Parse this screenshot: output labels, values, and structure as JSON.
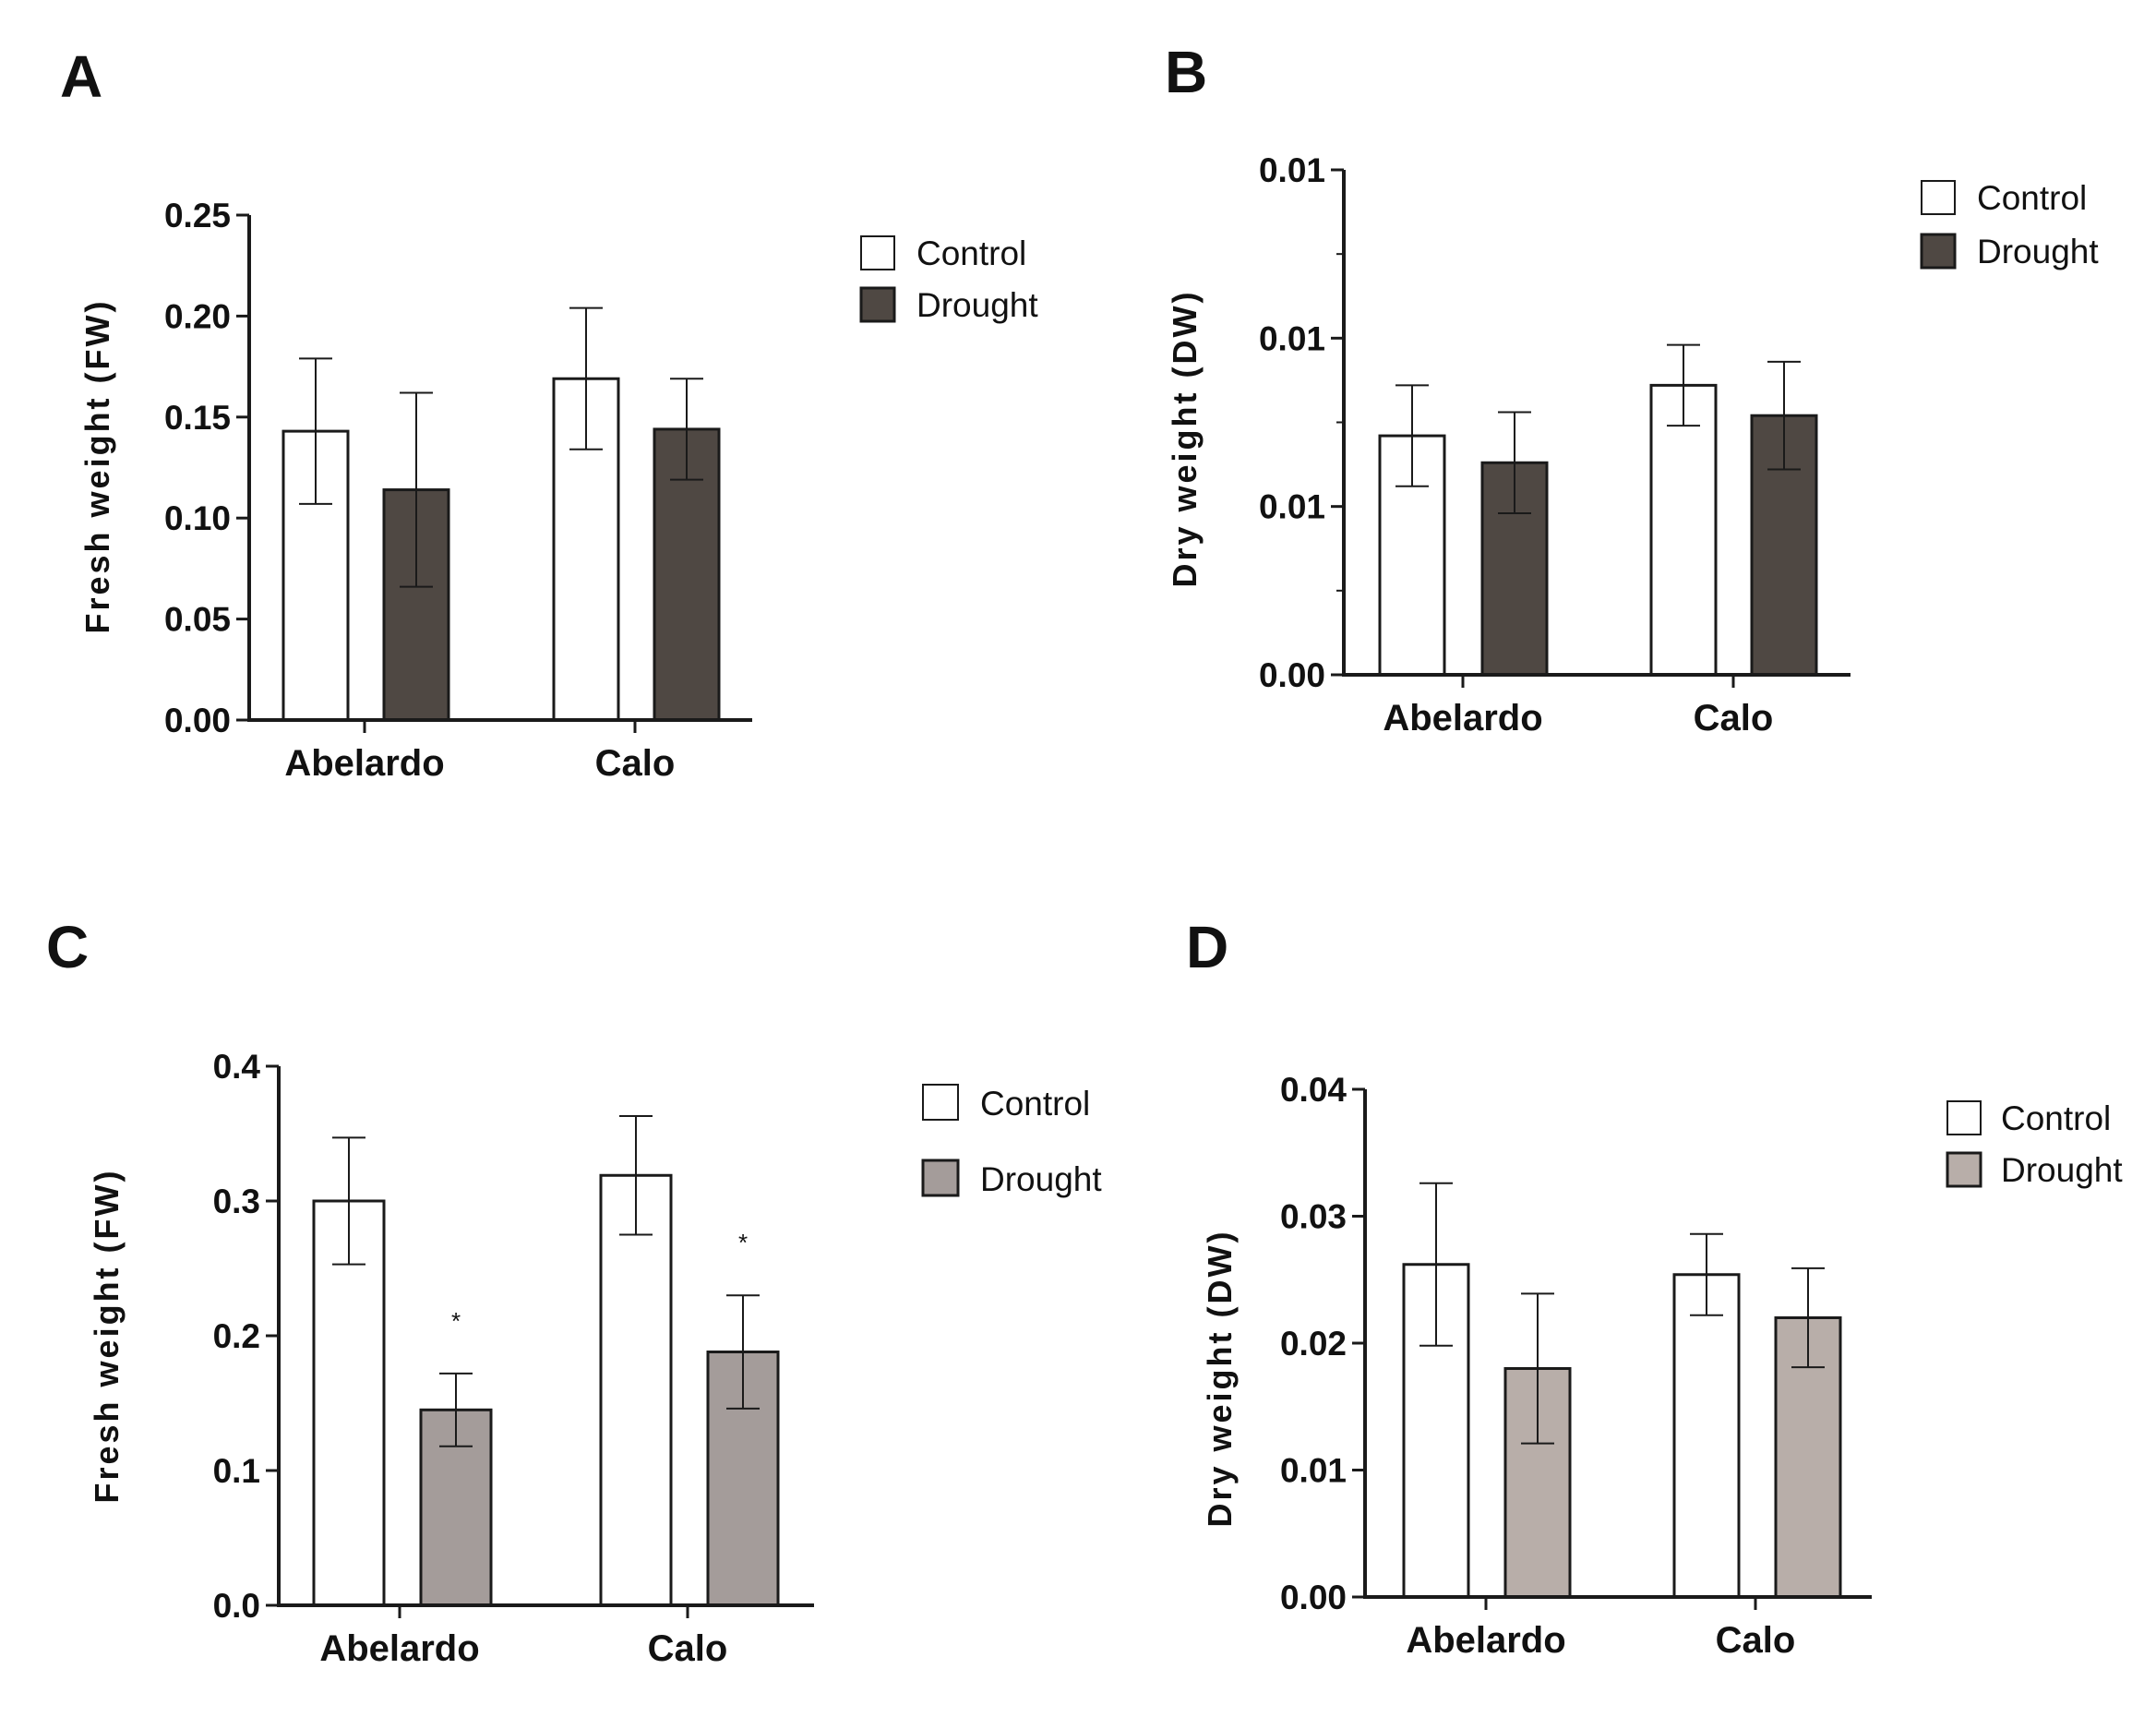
{
  "colors": {
    "control": "#ffffff",
    "drought_dark": "#4f4843",
    "drought_gray": "#a49c9a",
    "drought_taupe": "#b8aea9",
    "axis": "#1a1a1a"
  },
  "chart_data": [
    {
      "panel": "A",
      "type": "bar",
      "categories": [
        "Abelardo",
        "Calo"
      ],
      "ylabel": "Fresh weight (FW)",
      "ylim": [
        0,
        0.25
      ],
      "yticks": [
        "0.00",
        "0.05",
        "0.10",
        "0.15",
        "0.20",
        "0.25"
      ],
      "minor_ticks": false,
      "legend_placement": "right",
      "series": [
        {
          "name": "Control",
          "values": [
            0.143,
            0.169
          ],
          "errors": [
            0.036,
            0.035
          ]
        },
        {
          "name": "Drought",
          "values": [
            0.114,
            0.144
          ],
          "errors": [
            0.048,
            0.025
          ]
        }
      ]
    },
    {
      "panel": "B",
      "type": "bar",
      "categories": [
        "Abelardo",
        "Calo"
      ],
      "ylabel": "Dry weight (DW)",
      "ylim": [
        0,
        0.015
      ],
      "yticks": [
        "0.00",
        "0.01",
        "0.01",
        "0.01"
      ],
      "minor_ticks": true,
      "legend_placement": "top-right",
      "series": [
        {
          "name": "Control",
          "values": [
            0.0071,
            0.0086
          ],
          "errors": [
            0.0015,
            0.0012
          ]
        },
        {
          "name": "Drought",
          "values": [
            0.0063,
            0.0077
          ],
          "errors": [
            0.0015,
            0.0016
          ]
        }
      ]
    },
    {
      "panel": "C",
      "type": "bar",
      "categories": [
        "Abelardo",
        "Calo"
      ],
      "ylabel": "Fresh weight (FW)",
      "ylim": [
        0,
        0.4
      ],
      "yticks": [
        "0.0",
        "0.1",
        "0.2",
        "0.3",
        "0.4"
      ],
      "minor_ticks": false,
      "legend_placement": "right",
      "significance": [
        "*",
        "*"
      ],
      "series": [
        {
          "name": "Control",
          "values": [
            0.3,
            0.319
          ],
          "errors": [
            0.047,
            0.044
          ]
        },
        {
          "name": "Drought",
          "values": [
            0.145,
            0.188
          ],
          "errors": [
            0.027,
            0.042
          ]
        }
      ]
    },
    {
      "panel": "D",
      "type": "bar",
      "categories": [
        "Abelardo",
        "Calo"
      ],
      "ylabel": "Dry weight (DW)",
      "ylim": [
        0,
        0.04
      ],
      "yticks": [
        "0.00",
        "0.01",
        "0.02",
        "0.03",
        "0.04"
      ],
      "minor_ticks": false,
      "legend_placement": "top-right",
      "series": [
        {
          "name": "Control",
          "values": [
            0.0262,
            0.0254
          ],
          "errors": [
            0.0064,
            0.0032
          ]
        },
        {
          "name": "Drought",
          "values": [
            0.018,
            0.022
          ],
          "errors": [
            0.0059,
            0.0039
          ]
        }
      ]
    }
  ]
}
